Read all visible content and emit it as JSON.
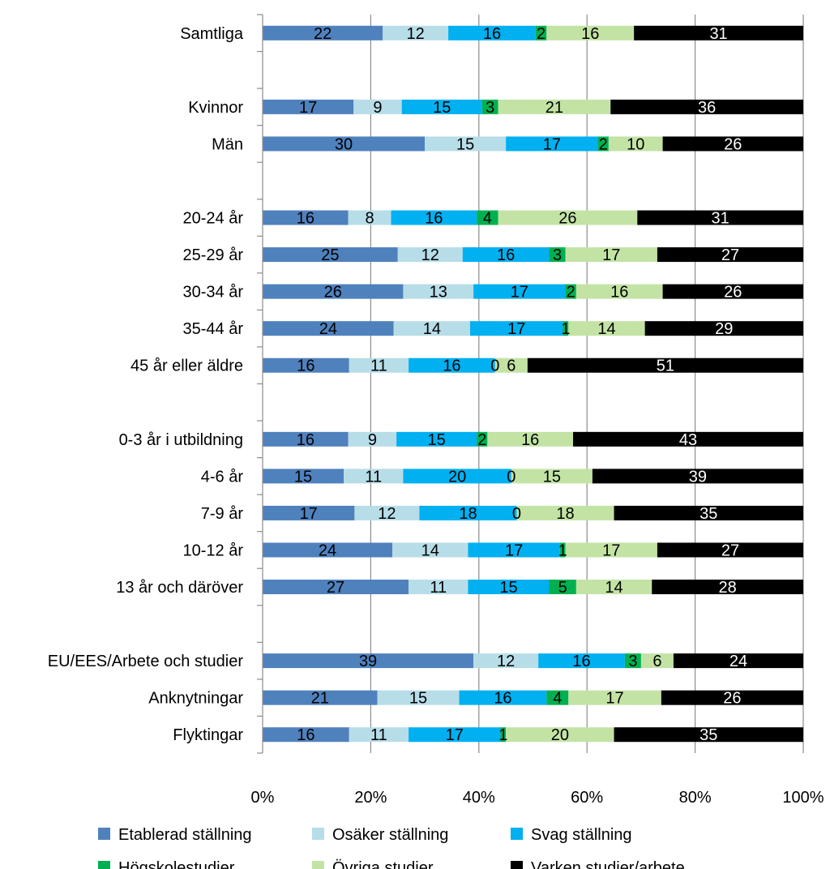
{
  "chart_data": {
    "type": "bar",
    "orientation": "horizontal",
    "stacked": "percent",
    "categories": [
      "Samtliga",
      "",
      "Kvinnor",
      "Män",
      "",
      "20-24 år",
      "25-29 år",
      "30-34 år",
      "35-44 år",
      "45 år eller äldre",
      "",
      "0-3 år i utbildning",
      "4-6 år",
      "7-9 år",
      "10-12 år",
      "13 år och däröver",
      "",
      "EU/EES/Arbete och studier",
      "Anknytningar",
      "Flyktingar"
    ],
    "series": [
      {
        "name": "Etablerad ställning",
        "color": "#4F81BD",
        "label_color": "#000000",
        "values": [
          22,
          null,
          17,
          30,
          null,
          16,
          25,
          26,
          24,
          16,
          null,
          16,
          15,
          17,
          24,
          27,
          null,
          39,
          21,
          16
        ]
      },
      {
        "name": "Osäker ställning",
        "color": "#B7DDE8",
        "label_color": "#000000",
        "values": [
          12,
          null,
          9,
          15,
          null,
          8,
          12,
          13,
          14,
          11,
          null,
          9,
          11,
          12,
          14,
          11,
          null,
          12,
          15,
          11
        ]
      },
      {
        "name": "Svag ställning",
        "color": "#00B0F0",
        "label_color": "#000000",
        "values": [
          16,
          null,
          15,
          17,
          null,
          16,
          16,
          17,
          17,
          16,
          null,
          15,
          20,
          18,
          17,
          15,
          null,
          16,
          16,
          17
        ]
      },
      {
        "name": "Högskolestudier",
        "color": "#00B050",
        "label_color": "#000000",
        "values": [
          2,
          null,
          3,
          2,
          null,
          4,
          3,
          2,
          1,
          0,
          null,
          2,
          0,
          0,
          1,
          5,
          null,
          3,
          4,
          1
        ]
      },
      {
        "name": "Övriga studier",
        "color": "#C3E3A5",
        "label_color": "#000000",
        "values": [
          16,
          null,
          21,
          10,
          null,
          26,
          17,
          16,
          14,
          6,
          null,
          16,
          15,
          18,
          17,
          14,
          null,
          6,
          17,
          20
        ]
      },
      {
        "name": "Varken studier/arbete",
        "color": "#000000",
        "label_color": "#FFFFFF",
        "values": [
          31,
          null,
          36,
          26,
          null,
          31,
          27,
          26,
          29,
          51,
          null,
          43,
          39,
          35,
          27,
          28,
          null,
          24,
          26,
          35
        ]
      }
    ],
    "x_ticks": [
      "0%",
      "20%",
      "40%",
      "60%",
      "80%",
      "100%"
    ],
    "xlim": [
      0,
      100
    ],
    "grid": true,
    "legend_position": "bottom"
  }
}
